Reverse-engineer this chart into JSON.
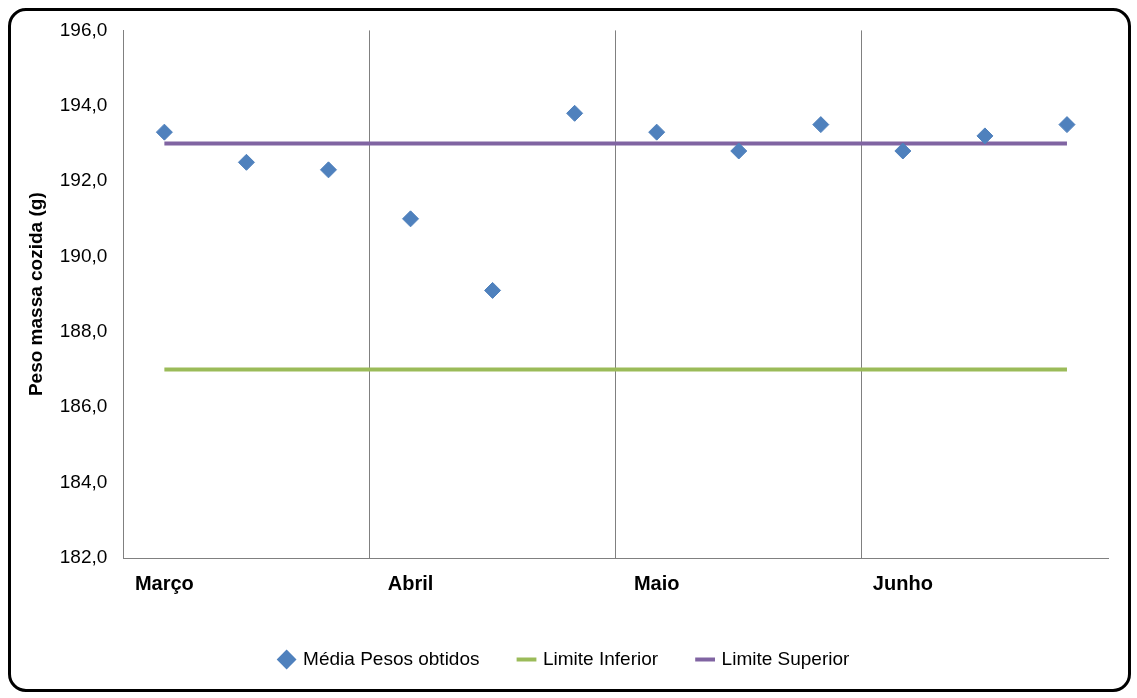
{
  "chart_data": {
    "type": "scatter",
    "ylabel": "Peso massa cozida (g)",
    "categories": [
      "Março",
      null,
      null,
      "Abril",
      null,
      null,
      "Maio",
      null,
      null,
      "Junho",
      null,
      null
    ],
    "series": [
      {
        "name": "Média Pesos obtidos",
        "color": "#4f81bd",
        "marker": "diamond",
        "values": [
          193.3,
          192.5,
          192.3,
          191.0,
          189.1,
          193.8,
          193.3,
          192.8,
          193.5,
          192.8,
          193.2,
          193.5
        ]
      },
      {
        "name": "Limite Inferior",
        "type": "line",
        "color": "#9bbb59",
        "marker": "none",
        "values": [
          187.0,
          187.0,
          187.0,
          187.0,
          187.0,
          187.0,
          187.0,
          187.0,
          187.0,
          187.0,
          187.0,
          187.0
        ]
      },
      {
        "name": "Limite Superior",
        "type": "line",
        "color": "#8064a2",
        "marker": "none",
        "values": [
          193.0,
          193.0,
          193.0,
          193.0,
          193.0,
          193.0,
          193.0,
          193.0,
          193.0,
          193.0,
          193.0,
          193.0
        ]
      }
    ],
    "ylim": [
      182,
      196
    ],
    "yticks": [
      {
        "value": 182,
        "label": "182,0"
      },
      {
        "value": 184,
        "label": "184,0"
      },
      {
        "value": 186,
        "label": "186,0"
      },
      {
        "value": 188,
        "label": "188,0"
      },
      {
        "value": 190,
        "label": "190,0"
      },
      {
        "value": 192,
        "label": "192,0"
      },
      {
        "value": 194,
        "label": "194,0"
      },
      {
        "value": 196,
        "label": "196,0"
      }
    ],
    "grid": "x",
    "legend": "bottom"
  }
}
